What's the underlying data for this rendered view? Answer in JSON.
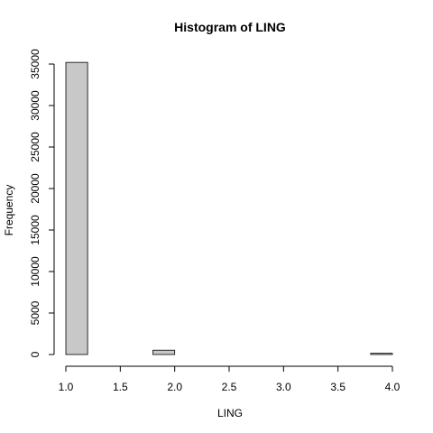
{
  "chart_data": {
    "type": "bar",
    "title": "Histogram of LING",
    "xlabel": "LING",
    "ylabel": "Frequency",
    "bins": [
      {
        "x0": 1.0,
        "x1": 1.2,
        "count": 35200
      },
      {
        "x0": 1.2,
        "x1": 1.4,
        "count": 0
      },
      {
        "x0": 1.4,
        "x1": 1.6,
        "count": 0
      },
      {
        "x0": 1.6,
        "x1": 1.8,
        "count": 0
      },
      {
        "x0": 1.8,
        "x1": 2.0,
        "count": 520
      },
      {
        "x0": 2.0,
        "x1": 2.2,
        "count": 0
      },
      {
        "x0": 2.2,
        "x1": 2.4,
        "count": 0
      },
      {
        "x0": 2.4,
        "x1": 2.6,
        "count": 0
      },
      {
        "x0": 2.6,
        "x1": 2.8,
        "count": 0
      },
      {
        "x0": 2.8,
        "x1": 3.0,
        "count": 0
      },
      {
        "x0": 3.0,
        "x1": 3.2,
        "count": 0
      },
      {
        "x0": 3.2,
        "x1": 3.4,
        "count": 0
      },
      {
        "x0": 3.4,
        "x1": 3.6,
        "count": 0
      },
      {
        "x0": 3.6,
        "x1": 3.8,
        "count": 0
      },
      {
        "x0": 3.8,
        "x1": 4.0,
        "count": 150
      }
    ],
    "xlim": [
      1.0,
      4.0
    ],
    "ylim": [
      0,
      35000
    ],
    "xticks": [
      "1.0",
      "1.5",
      "2.0",
      "2.5",
      "3.0",
      "3.5",
      "4.0"
    ],
    "yticks": [
      "0",
      "5000",
      "10000",
      "15000",
      "20000",
      "25000",
      "30000",
      "35000"
    ],
    "grid": false,
    "bar_fill": "#c8c8c8",
    "bar_stroke": "#000000"
  }
}
